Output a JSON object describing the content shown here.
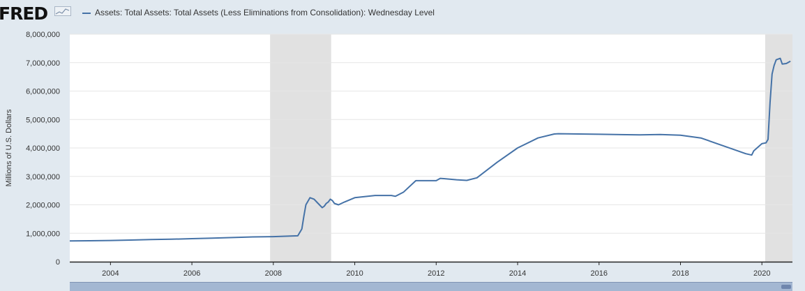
{
  "logo": {
    "text": "FRED"
  },
  "legend": {
    "label": "Assets: Total Assets: Total Assets (Less Eliminations from Consolidation): Wednesday Level"
  },
  "colors": {
    "line": "#4572a7",
    "recession": "#e1e1e1",
    "plot_bg": "#ffffff",
    "page_bg": "#e1e9f0"
  },
  "icons": {
    "logo_spark": "sparkline-chart-icon"
  },
  "chart_data": {
    "type": "line",
    "title": "",
    "xlabel": "",
    "ylabel": "Millions of U.S. Dollars",
    "xlim": [
      2003.0,
      2020.75
    ],
    "ylim": [
      0,
      8000000
    ],
    "yticks": [
      0,
      1000000,
      2000000,
      3000000,
      4000000,
      5000000,
      6000000,
      7000000,
      8000000
    ],
    "ytick_labels": [
      "0",
      "1,000,000",
      "2,000,000",
      "3,000,000",
      "4,000,000",
      "5,000,000",
      "6,000,000",
      "7,000,000",
      "8,000,000"
    ],
    "xticks": [
      2004,
      2006,
      2008,
      2010,
      2012,
      2014,
      2016,
      2018,
      2020
    ],
    "xtick_labels": [
      "2004",
      "2006",
      "2008",
      "2010",
      "2012",
      "2014",
      "2016",
      "2018",
      "2020"
    ],
    "grid": "horizontal",
    "recessions": [
      [
        2007.92,
        2009.42
      ],
      [
        2020.08,
        2020.75
      ]
    ],
    "series": [
      {
        "name": "Assets: Total Assets: Total Assets (Less Eliminations from Consolidation): Wednesday Level",
        "x": [
          2003.0,
          2003.5,
          2004.0,
          2004.5,
          2005.0,
          2005.5,
          2006.0,
          2006.5,
          2007.0,
          2007.5,
          2008.0,
          2008.3,
          2008.6,
          2008.7,
          2008.75,
          2008.8,
          2008.9,
          2009.0,
          2009.1,
          2009.2,
          2009.25,
          2009.3,
          2009.35,
          2009.4,
          2009.45,
          2009.5,
          2009.6,
          2009.75,
          2010.0,
          2010.5,
          2010.9,
          2011.0,
          2011.2,
          2011.5,
          2012.0,
          2012.1,
          2012.5,
          2012.75,
          2013.0,
          2013.5,
          2014.0,
          2014.5,
          2014.9,
          2015.0,
          2016.0,
          2017.0,
          2017.5,
          2018.0,
          2018.5,
          2019.0,
          2019.4,
          2019.6,
          2019.75,
          2019.8,
          2020.0,
          2020.1,
          2020.15,
          2020.2,
          2020.25,
          2020.3,
          2020.35,
          2020.45,
          2020.5,
          2020.6,
          2020.7
        ],
        "values": [
          730000,
          735000,
          745000,
          760000,
          780000,
          790000,
          810000,
          830000,
          850000,
          870000,
          880000,
          895000,
          910000,
          1150000,
          1600000,
          2000000,
          2250000,
          2200000,
          2050000,
          1900000,
          1950000,
          2050000,
          2100000,
          2200000,
          2150000,
          2050000,
          2000000,
          2100000,
          2250000,
          2330000,
          2330000,
          2300000,
          2450000,
          2850000,
          2850000,
          2930000,
          2880000,
          2860000,
          2950000,
          3500000,
          4000000,
          4350000,
          4490000,
          4500000,
          4480000,
          4460000,
          4470000,
          4450000,
          4350000,
          4100000,
          3900000,
          3800000,
          3750000,
          3900000,
          4150000,
          4180000,
          4300000,
          5600000,
          6600000,
          6900000,
          7100000,
          7150000,
          6950000,
          6970000,
          7050000
        ]
      }
    ]
  }
}
